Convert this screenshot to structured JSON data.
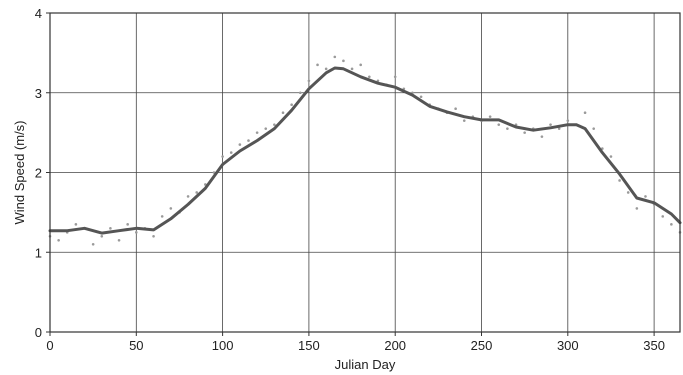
{
  "chart_data": {
    "type": "scatter",
    "title": "",
    "xlabel": "Julian Day",
    "ylabel": "Wind Speed (m/s)",
    "xlim": [
      0,
      365
    ],
    "ylim": [
      0,
      4
    ],
    "xticks": [
      0,
      50,
      100,
      150,
      200,
      250,
      300,
      350
    ],
    "yticks": [
      0,
      1,
      2,
      3,
      4
    ],
    "grid": true,
    "colors": {
      "points": "#9a9a9a",
      "line": "#555555",
      "grid": "#444444"
    },
    "series": [
      {
        "kind": "points",
        "x": [
          0,
          5,
          10,
          15,
          20,
          25,
          30,
          35,
          40,
          45,
          50,
          55,
          60,
          65,
          70,
          75,
          80,
          85,
          90,
          95,
          100,
          105,
          110,
          115,
          120,
          125,
          130,
          135,
          140,
          145,
          150,
          155,
          160,
          165,
          170,
          175,
          180,
          185,
          190,
          195,
          200,
          205,
          210,
          215,
          220,
          225,
          230,
          235,
          240,
          245,
          250,
          255,
          260,
          265,
          270,
          275,
          280,
          285,
          290,
          295,
          300,
          305,
          310,
          315,
          320,
          325,
          330,
          335,
          340,
          345,
          350,
          355,
          360,
          365
        ],
        "y": [
          1.2,
          1.15,
          1.25,
          1.35,
          1.3,
          1.1,
          1.2,
          1.3,
          1.15,
          1.35,
          1.25,
          1.3,
          1.2,
          1.45,
          1.55,
          1.5,
          1.7,
          1.75,
          1.85,
          2.0,
          2.2,
          2.25,
          2.35,
          2.4,
          2.5,
          2.55,
          2.6,
          2.75,
          2.85,
          3.0,
          3.15,
          3.35,
          3.3,
          3.45,
          3.4,
          3.3,
          3.35,
          3.2,
          3.15,
          3.1,
          3.2,
          3.05,
          3.0,
          2.95,
          2.85,
          2.8,
          2.75,
          2.8,
          2.65,
          2.7,
          2.65,
          2.7,
          2.6,
          2.55,
          2.6,
          2.5,
          2.55,
          2.45,
          2.6,
          2.55,
          2.65,
          2.6,
          2.75,
          2.55,
          2.3,
          2.2,
          1.9,
          1.75,
          1.55,
          1.7,
          1.6,
          1.45,
          1.35,
          1.25
        ]
      },
      {
        "kind": "smooth",
        "x": [
          0,
          10,
          20,
          30,
          40,
          50,
          60,
          70,
          80,
          90,
          100,
          110,
          120,
          130,
          140,
          150,
          160,
          165,
          170,
          180,
          190,
          200,
          210,
          220,
          230,
          240,
          250,
          260,
          270,
          280,
          290,
          300,
          305,
          310,
          320,
          330,
          340,
          350,
          360,
          365
        ],
        "y": [
          1.27,
          1.27,
          1.3,
          1.24,
          1.27,
          1.3,
          1.28,
          1.42,
          1.6,
          1.8,
          2.1,
          2.27,
          2.4,
          2.55,
          2.78,
          3.05,
          3.25,
          3.31,
          3.3,
          3.2,
          3.12,
          3.07,
          2.97,
          2.83,
          2.76,
          2.7,
          2.66,
          2.66,
          2.57,
          2.53,
          2.56,
          2.6,
          2.6,
          2.55,
          2.25,
          1.98,
          1.68,
          1.62,
          1.48,
          1.37
        ]
      }
    ]
  }
}
